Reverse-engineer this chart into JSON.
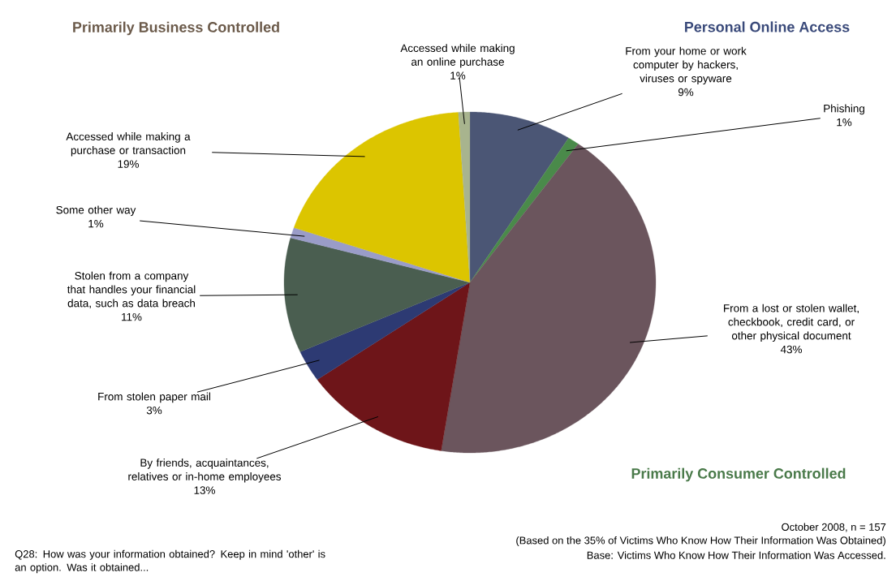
{
  "chart_data": {
    "type": "pie",
    "categories": [
      "From your home or work computer by hackers, viruses or spyware",
      "Phishing",
      "From a lost or stolen wallet, checkbook, credit card, or other physical document",
      "By friends, acquaintances, relatives or in-home employees",
      "From stolen paper mail",
      "Stolen from a company that handles your financial data, such as data breach",
      "Some other way",
      "Accessed while making a purchase or transaction",
      "Accessed while making an online purchase"
    ],
    "values": [
      9,
      1,
      43,
      13,
      3,
      11,
      1,
      19,
      1
    ],
    "value_labels": [
      "9%",
      "1%",
      "43%",
      "13%",
      "3%",
      "11%",
      "1%",
      "19%",
      "1%"
    ],
    "colors": [
      "#4b5675",
      "#4a8a4a",
      "#6b555d",
      "#6e1519",
      "#2d3a73",
      "#4a5e50",
      "#9a9cc8",
      "#dcc500",
      "#a8b48e"
    ],
    "annotations": [
      "Primarily Business Controlled",
      "Personal Online Access",
      "Primarily Consumer Controlled",
      "October 2008, n = 157",
      "(Based on the 35% of Victims Who Know How Their Information Was Obtained)",
      "Base: Victims Who Know How Their Information Was Accessed.",
      "Q28: How was your information obtained?  Keep in mind 'other' is an option. Was it obtained..."
    ]
  }
}
